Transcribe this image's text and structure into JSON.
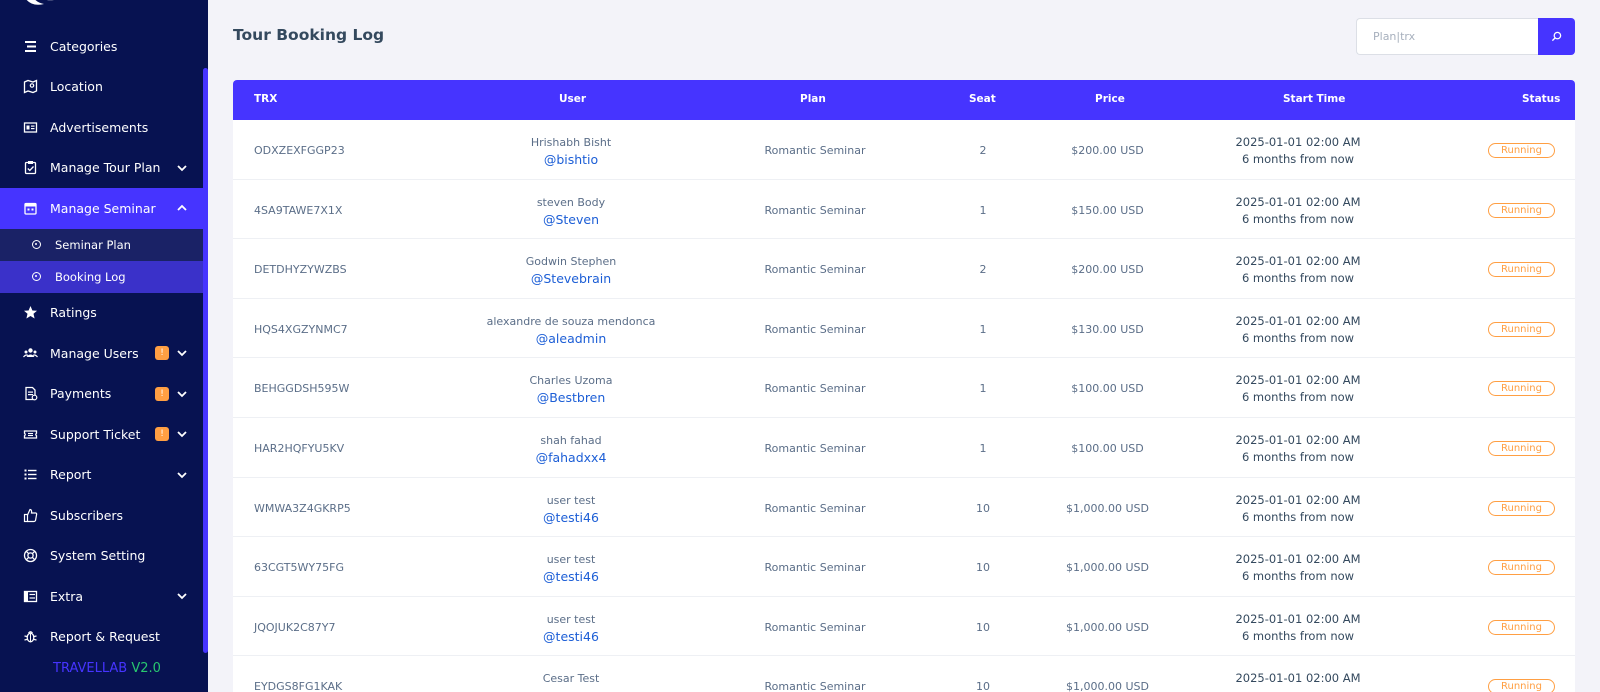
{
  "sidebar": {
    "items": [
      {
        "label": "Categories",
        "icon": "categories-icon",
        "has_chevron": false,
        "badge": ""
      },
      {
        "label": "Location",
        "icon": "map-icon",
        "has_chevron": false,
        "badge": ""
      },
      {
        "label": "Advertisements",
        "icon": "ad-icon",
        "has_chevron": false,
        "badge": ""
      },
      {
        "label": "Manage Tour Plan",
        "icon": "clipboard-icon",
        "has_chevron": true,
        "badge": ""
      },
      {
        "label": "Manage Seminar",
        "icon": "calendar-icon",
        "has_chevron": true,
        "badge": "",
        "active": true,
        "expanded": true
      }
    ],
    "seminar_sub": [
      {
        "label": "Seminar Plan"
      },
      {
        "label": "Booking Log",
        "active": true
      }
    ],
    "items_after": [
      {
        "label": "Ratings",
        "icon": "star-icon",
        "has_chevron": false,
        "badge": ""
      },
      {
        "label": "Manage Users",
        "icon": "users-icon",
        "has_chevron": true,
        "badge": "!"
      },
      {
        "label": "Payments",
        "icon": "payment-icon",
        "has_chevron": true,
        "badge": "!"
      },
      {
        "label": "Support Ticket",
        "icon": "ticket-icon",
        "has_chevron": true,
        "badge": "!"
      },
      {
        "label": "Report",
        "icon": "list-icon",
        "has_chevron": true,
        "badge": ""
      },
      {
        "label": "Subscribers",
        "icon": "thumbs-up-icon",
        "has_chevron": false,
        "badge": ""
      },
      {
        "label": "System Setting",
        "icon": "life-ring-icon",
        "has_chevron": false,
        "badge": ""
      },
      {
        "label": "Extra",
        "icon": "server-icon",
        "has_chevron": true,
        "badge": ""
      },
      {
        "label": "Report & Request",
        "icon": "bug-icon",
        "has_chevron": false,
        "badge": ""
      }
    ],
    "brand_name": "TRAVELLAB",
    "version": "V2.0"
  },
  "page": {
    "title": "Tour Booking Log",
    "search_placeholder": "Plan|trx"
  },
  "table": {
    "headers": {
      "trx": "TRX",
      "user": "User",
      "plan": "Plan",
      "seat": "Seat",
      "price": "Price",
      "start_time": "Start Time",
      "status": "Status"
    },
    "rows": [
      {
        "trx": "ODXZEXFGGP23",
        "name": "Hrishabh Bisht",
        "handle": "@bishtio",
        "plan": "Romantic Seminar",
        "seat": "2",
        "price": "$200.00 USD",
        "time": "2025-01-01 02:00 AM",
        "relative": "6 months from now",
        "status": "Running"
      },
      {
        "trx": "4SA9TAWE7X1X",
        "name": "steven Body",
        "handle": "@Steven",
        "plan": "Romantic Seminar",
        "seat": "1",
        "price": "$150.00 USD",
        "time": "2025-01-01 02:00 AM",
        "relative": "6 months from now",
        "status": "Running"
      },
      {
        "trx": "DETDHYZYWZBS",
        "name": "Godwin Stephen",
        "handle": "@Stevebrain",
        "plan": "Romantic Seminar",
        "seat": "2",
        "price": "$200.00 USD",
        "time": "2025-01-01 02:00 AM",
        "relative": "6 months from now",
        "status": "Running"
      },
      {
        "trx": "HQS4XGZYNMC7",
        "name": "alexandre de souza mendonca",
        "handle": "@aleadmin",
        "plan": "Romantic Seminar",
        "seat": "1",
        "price": "$130.00 USD",
        "time": "2025-01-01 02:00 AM",
        "relative": "6 months from now",
        "status": "Running"
      },
      {
        "trx": "BEHGGDSH595W",
        "name": "Charles Uzoma",
        "handle": "@Bestbren",
        "plan": "Romantic Seminar",
        "seat": "1",
        "price": "$100.00 USD",
        "time": "2025-01-01 02:00 AM",
        "relative": "6 months from now",
        "status": "Running"
      },
      {
        "trx": "HAR2HQFYU5KV",
        "name": "shah fahad",
        "handle": "@fahadxx4",
        "plan": "Romantic Seminar",
        "seat": "1",
        "price": "$100.00 USD",
        "time": "2025-01-01 02:00 AM",
        "relative": "6 months from now",
        "status": "Running"
      },
      {
        "trx": "WMWA3Z4GKRP5",
        "name": "user test",
        "handle": "@testi46",
        "plan": "Romantic Seminar",
        "seat": "10",
        "price": "$1,000.00 USD",
        "time": "2025-01-01 02:00 AM",
        "relative": "6 months from now",
        "status": "Running"
      },
      {
        "trx": "63CGT5WY75FG",
        "name": "user test",
        "handle": "@testi46",
        "plan": "Romantic Seminar",
        "seat": "10",
        "price": "$1,000.00 USD",
        "time": "2025-01-01 02:00 AM",
        "relative": "6 months from now",
        "status": "Running"
      },
      {
        "trx": "JQOJUK2C87Y7",
        "name": "user test",
        "handle": "@testi46",
        "plan": "Romantic Seminar",
        "seat": "10",
        "price": "$1,000.00 USD",
        "time": "2025-01-01 02:00 AM",
        "relative": "6 months from now",
        "status": "Running"
      },
      {
        "trx": "EYDGS8FG1KAK",
        "name": "Cesar Test",
        "handle": "",
        "plan": "Romantic Seminar",
        "seat": "10",
        "price": "$1,000.00 USD",
        "time": "2025-01-01 02:00 AM",
        "relative": "",
        "status": "Running"
      }
    ]
  },
  "colors": {
    "sidebar_bg": "#071251",
    "accent": "#4634ff",
    "status_running": "#ff9f43",
    "link": "#1c5ed6",
    "brand_version": "#28c76f"
  }
}
